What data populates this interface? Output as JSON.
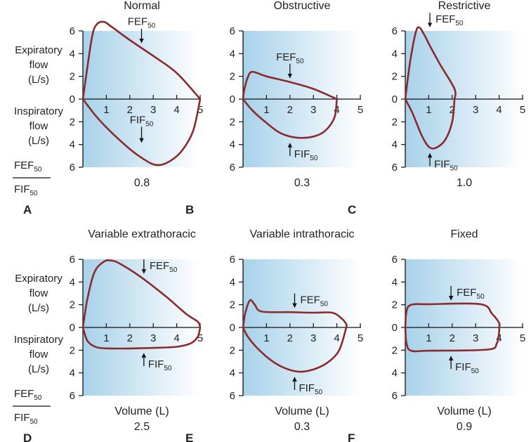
{
  "colors": {
    "curve": "#8b2a2e",
    "grad_left": "#a8d2ea",
    "grad_right": "#ffffff",
    "axis": "#111111",
    "text": "#222222"
  },
  "left_labels": {
    "expiratory": [
      "Expiratory",
      "flow",
      "(L/s)"
    ],
    "inspiratory": [
      "Inspiratory",
      "flow",
      "(L/s)"
    ],
    "ratio_num": {
      "base": "FEF",
      "sub": "50"
    },
    "ratio_den": {
      "base": "FIF",
      "sub": "50"
    }
  },
  "chart_data": [
    {
      "type": "line",
      "letter": "A",
      "title": "Normal",
      "ratio": "0.8",
      "xlabel": "",
      "xlim": [
        0,
        5
      ],
      "ylim_expiratory": [
        0,
        6
      ],
      "ylim_inspiratory": [
        0,
        6
      ],
      "x_ticks": [
        "1",
        "2",
        "3",
        "4",
        "5"
      ],
      "y_ticks": [
        "6",
        "4",
        "2",
        "0",
        "2",
        "4",
        "6"
      ],
      "expiratory": [
        [
          0,
          0
        ],
        [
          0.15,
          2.2
        ],
        [
          0.4,
          5.6
        ],
        [
          0.6,
          6.6
        ],
        [
          0.9,
          6.8
        ],
        [
          1.2,
          6.4
        ],
        [
          2,
          5.2
        ],
        [
          3,
          3.8
        ],
        [
          4,
          2.3
        ],
        [
          5,
          0
        ]
      ],
      "inspiratory": [
        [
          0,
          0
        ],
        [
          0.6,
          1.6
        ],
        [
          1.3,
          3.1
        ],
        [
          2,
          4.4
        ],
        [
          2.6,
          5.3
        ],
        [
          3.1,
          5.8
        ],
        [
          3.6,
          5.6
        ],
        [
          4.2,
          4.6
        ],
        [
          4.7,
          2.8
        ],
        [
          5,
          0
        ]
      ],
      "fef_label": {
        "base": "FEF",
        "sub": "50",
        "x": 2.5,
        "y_exp": 4.6,
        "side": "above",
        "dir": "down"
      },
      "fif_label": {
        "base": "FIF",
        "sub": "50",
        "x": 2.5,
        "y_insp": 4.3,
        "side": "above",
        "dir": "down"
      }
    },
    {
      "type": "line",
      "letter": "B",
      "title": "Obstructive",
      "ratio": "0.3",
      "xlabel": "",
      "xlim": [
        0,
        5
      ],
      "ylim_expiratory": [
        0,
        6
      ],
      "ylim_inspiratory": [
        0,
        6
      ],
      "x_ticks": [
        "1",
        "2",
        "3",
        "4",
        "5"
      ],
      "y_ticks": [
        "6",
        "4",
        "2",
        "0",
        "2",
        "4",
        "6"
      ],
      "expiratory": [
        [
          0,
          0
        ],
        [
          0.05,
          0.8
        ],
        [
          0.2,
          1.9
        ],
        [
          0.4,
          2.4
        ],
        [
          1,
          2.0
        ],
        [
          2,
          1.5
        ],
        [
          3,
          0.9
        ],
        [
          4,
          0
        ]
      ],
      "inspiratory": [
        [
          0,
          0
        ],
        [
          0.4,
          1.0
        ],
        [
          1,
          2.1
        ],
        [
          1.6,
          3.0
        ],
        [
          2.3,
          3.4
        ],
        [
          3,
          3.3
        ],
        [
          3.5,
          2.8
        ],
        [
          3.9,
          1.6
        ],
        [
          4,
          0
        ]
      ],
      "fef_label": {
        "base": "FEF",
        "sub": "50",
        "x": 2.0,
        "y_exp": 1.5,
        "side": "above",
        "dir": "down"
      },
      "fif_label": {
        "base": "FIF",
        "sub": "50",
        "x": 2.0,
        "y_insp": 3.4,
        "side": "below",
        "dir": "up"
      }
    },
    {
      "type": "line",
      "letter": "C",
      "title": "Restrictive",
      "ratio": "1.0",
      "xlabel": "",
      "xlim": [
        0,
        5
      ],
      "ylim_expiratory": [
        0,
        6
      ],
      "ylim_inspiratory": [
        0,
        6
      ],
      "x_ticks": [
        "1",
        "2",
        "3",
        "4",
        "5"
      ],
      "y_ticks": [
        "6",
        "4",
        "2",
        "0",
        "2",
        "4",
        "6"
      ],
      "expiratory": [
        [
          0,
          0
        ],
        [
          0.2,
          3.2
        ],
        [
          0.45,
          5.9
        ],
        [
          0.6,
          6.3
        ],
        [
          0.8,
          5.7
        ],
        [
          1.1,
          4.5
        ],
        [
          1.5,
          3.0
        ],
        [
          2.1,
          0.9
        ],
        [
          2.1,
          0
        ]
      ],
      "inspiratory": [
        [
          0,
          0
        ],
        [
          0.3,
          1.2
        ],
        [
          0.7,
          3.2
        ],
        [
          1.0,
          4.2
        ],
        [
          1.3,
          4.3
        ],
        [
          1.7,
          3.6
        ],
        [
          2.0,
          2.0
        ],
        [
          2.1,
          0
        ]
      ],
      "fef_label": {
        "base": "FEF",
        "sub": "50",
        "x": 1.05,
        "y_exp": 6.0,
        "side": "right",
        "dir": "down"
      },
      "fif_label": {
        "base": "FIF",
        "sub": "50",
        "x": 1.05,
        "y_insp": 4.3,
        "side": "below",
        "dir": "up"
      }
    },
    {
      "type": "line",
      "letter": "D",
      "title": "Variable extrathoracic",
      "ratio": "2.5",
      "xlabel": "Volume (L)",
      "xlim": [
        0,
        5
      ],
      "ylim_expiratory": [
        0,
        6
      ],
      "ylim_inspiratory": [
        0,
        6
      ],
      "x_ticks": [
        "1",
        "2",
        "3",
        "4",
        "5"
      ],
      "y_ticks": [
        "6",
        "4",
        "2",
        "0",
        "2",
        "4",
        "6"
      ],
      "expiratory": [
        [
          0,
          0
        ],
        [
          0.2,
          2.6
        ],
        [
          0.5,
          4.9
        ],
        [
          0.9,
          5.8
        ],
        [
          1.2,
          5.9
        ],
        [
          1.6,
          5.6
        ],
        [
          2.5,
          4.4
        ],
        [
          3.5,
          2.8
        ],
        [
          4.4,
          1.2
        ],
        [
          4.9,
          0.5
        ],
        [
          5,
          0
        ]
      ],
      "inspiratory": [
        [
          0,
          0
        ],
        [
          0.2,
          1.2
        ],
        [
          0.6,
          1.75
        ],
        [
          1.2,
          1.85
        ],
        [
          2,
          1.85
        ],
        [
          3,
          1.8
        ],
        [
          4,
          1.7
        ],
        [
          4.6,
          1.4
        ],
        [
          4.9,
          0.8
        ],
        [
          5,
          0
        ]
      ],
      "fef_label": {
        "base": "FEF",
        "sub": "50",
        "x": 2.6,
        "y_exp": 4.4,
        "side": "right",
        "dir": "down"
      },
      "fif_label": {
        "base": "FIF",
        "sub": "50",
        "x": 2.6,
        "y_insp": 1.8,
        "side": "below",
        "dir": "up"
      }
    },
    {
      "type": "line",
      "letter": "E",
      "title": "Variable intrathoracic",
      "ratio": "0.3",
      "xlabel": "Volume (L)",
      "xlim": [
        0,
        5
      ],
      "ylim_expiratory": [
        0,
        6
      ],
      "ylim_inspiratory": [
        0,
        6
      ],
      "x_ticks": [
        "1",
        "2",
        "3",
        "4",
        "5"
      ],
      "y_ticks": [
        "6",
        "4",
        "2",
        "0",
        "2",
        "4",
        "6"
      ],
      "expiratory": [
        [
          0,
          0
        ],
        [
          0.1,
          1.3
        ],
        [
          0.3,
          2.4
        ],
        [
          0.5,
          2.0
        ],
        [
          0.8,
          1.4
        ],
        [
          2,
          1.35
        ],
        [
          3,
          1.3
        ],
        [
          3.8,
          1.3
        ],
        [
          4.2,
          0.8
        ],
        [
          4.4,
          0.3
        ],
        [
          4.4,
          0
        ]
      ],
      "inspiratory": [
        [
          0,
          0
        ],
        [
          0.2,
          0.8
        ],
        [
          0.6,
          1.8
        ],
        [
          1.2,
          2.9
        ],
        [
          1.8,
          3.6
        ],
        [
          2.4,
          3.9
        ],
        [
          3,
          3.7
        ],
        [
          3.6,
          3.1
        ],
        [
          4.1,
          2.0
        ],
        [
          4.4,
          0
        ]
      ],
      "fef_label": {
        "base": "FEF",
        "sub": "50",
        "x": 2.2,
        "y_exp": 1.4,
        "side": "right",
        "dir": "down"
      },
      "fif_label": {
        "base": "FIF",
        "sub": "50",
        "x": 2.2,
        "y_insp": 3.9,
        "side": "below",
        "dir": "up"
      }
    },
    {
      "type": "line",
      "letter": "F",
      "title": "Fixed",
      "ratio": "0.9",
      "xlabel": "Volume (L)",
      "xlim": [
        0,
        5
      ],
      "ylim_expiratory": [
        0,
        6
      ],
      "ylim_inspiratory": [
        0,
        6
      ],
      "x_ticks": [
        "1",
        "2",
        "3",
        "4",
        "5"
      ],
      "y_ticks": [
        "6",
        "4",
        "2",
        "0",
        "2",
        "4",
        "6"
      ],
      "expiratory": [
        [
          0,
          0
        ],
        [
          0.05,
          1.4
        ],
        [
          0.25,
          2.0
        ],
        [
          1,
          2.05
        ],
        [
          3.2,
          2.05
        ],
        [
          3.7,
          1.2
        ],
        [
          4.0,
          0.4
        ],
        [
          4.0,
          0
        ]
      ],
      "inspiratory": [
        [
          0,
          0
        ],
        [
          0.05,
          1.4
        ],
        [
          0.25,
          2.05
        ],
        [
          1,
          2.05
        ],
        [
          3.5,
          1.95
        ],
        [
          3.9,
          1.4
        ],
        [
          4.0,
          0.4
        ],
        [
          4.0,
          0
        ]
      ],
      "fef_label": {
        "base": "FEF",
        "sub": "50",
        "x": 1.95,
        "y_exp": 2.05,
        "side": "right",
        "dir": "down"
      },
      "fif_label": {
        "base": "FIF",
        "sub": "50",
        "x": 1.95,
        "y_insp": 2.05,
        "side": "below",
        "dir": "up"
      }
    }
  ]
}
